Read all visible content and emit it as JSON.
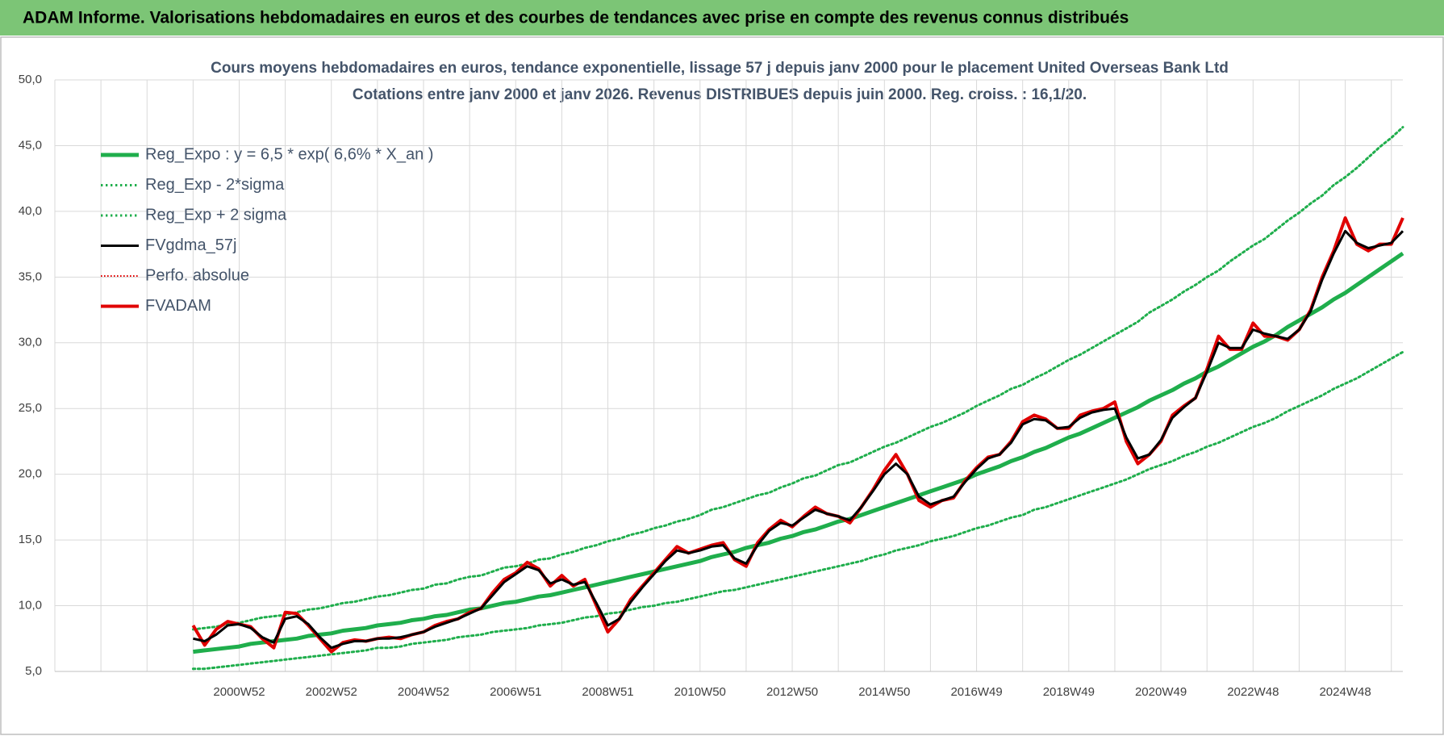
{
  "header": "ADAM Informe. Valorisations hebdomadaires en euros et des courbes de tendances avec prise en compte des revenus connus distribués",
  "chart_data": {
    "type": "line",
    "title": "Cours moyens hebdomadaires en euros, tendance exponentielle, lissage 57 j depuis janv 2000 pour le placement United Overseas Bank Ltd",
    "subtitle": "Cotations entre janv 2000 et janv 2026. Revenus DISTRIBUES depuis juin 2000. Reg. croiss. : 16,1/20.",
    "categories": [
      null,
      null,
      null,
      null,
      null,
      null,
      null,
      null,
      null,
      null,
      null,
      null,
      null,
      null,
      null,
      null,
      "2000W52",
      null,
      null,
      null,
      null,
      null,
      null,
      null,
      "2002W52",
      null,
      null,
      null,
      null,
      null,
      null,
      null,
      "2004W52",
      null,
      null,
      null,
      null,
      null,
      null,
      null,
      "2006W51",
      null,
      null,
      null,
      null,
      null,
      null,
      null,
      "2008W51",
      null,
      null,
      null,
      null,
      null,
      null,
      null,
      "2010W50",
      null,
      null,
      null,
      null,
      null,
      null,
      null,
      "2012W50",
      null,
      null,
      null,
      null,
      null,
      null,
      null,
      "2014W50",
      null,
      null,
      null,
      null,
      null,
      null,
      null,
      "2016W49",
      null,
      null,
      null,
      null,
      null,
      null,
      null,
      "2018W49",
      null,
      null,
      null,
      null,
      null,
      null,
      null,
      "2020W49",
      null,
      null,
      null,
      null,
      null,
      null,
      null,
      "2022W48",
      null,
      null,
      null,
      null,
      null,
      null,
      null,
      "2024W48",
      null,
      null,
      null,
      null,
      null
    ],
    "ylim": [
      5,
      50
    ],
    "yticks": [
      {
        "value": 5,
        "label": "5,0"
      },
      {
        "value": 10,
        "label": "10,0"
      },
      {
        "value": 15,
        "label": "15,0"
      },
      {
        "value": 20,
        "label": "20,0"
      },
      {
        "value": 25,
        "label": "25,0"
      },
      {
        "value": 30,
        "label": "30,0"
      },
      {
        "value": 35,
        "label": "35,0"
      },
      {
        "value": 40,
        "label": "40,0"
      },
      {
        "value": 45,
        "label": "45,0"
      },
      {
        "value": 50,
        "label": "50,0"
      }
    ],
    "grid": true,
    "legend": "top-left",
    "series": [
      {
        "name": "Reg_Expo : y = 6,5 * exp( 6,6% *  X_an )",
        "color": "#1fae4c",
        "style": "solid",
        "width": 5,
        "values": [
          null,
          null,
          null,
          null,
          null,
          null,
          null,
          null,
          null,
          null,
          null,
          null,
          6.5,
          6.6,
          6.7,
          6.8,
          6.9,
          7.1,
          7.2,
          7.3,
          7.4,
          7.5,
          7.7,
          7.8,
          7.9,
          8.1,
          8.2,
          8.3,
          8.5,
          8.6,
          8.7,
          8.9,
          9.0,
          9.2,
          9.3,
          9.5,
          9.7,
          9.8,
          10.0,
          10.2,
          10.3,
          10.5,
          10.7,
          10.8,
          11.0,
          11.2,
          11.4,
          11.6,
          11.8,
          12.0,
          12.2,
          12.4,
          12.6,
          12.8,
          13.0,
          13.2,
          13.4,
          13.7,
          13.9,
          14.1,
          14.4,
          14.6,
          14.8,
          15.1,
          15.3,
          15.6,
          15.8,
          16.1,
          16.4,
          16.6,
          16.9,
          17.2,
          17.5,
          17.8,
          18.1,
          18.4,
          18.7,
          19.0,
          19.3,
          19.6,
          20.0,
          20.3,
          20.6,
          21.0,
          21.3,
          21.7,
          22.0,
          22.4,
          22.8,
          23.1,
          23.5,
          23.9,
          24.3,
          24.7,
          25.1,
          25.6,
          26.0,
          26.4,
          26.9,
          27.3,
          27.8,
          28.2,
          28.7,
          29.2,
          29.7,
          30.1,
          30.6,
          31.2,
          31.7,
          32.2,
          32.7,
          33.3,
          33.8,
          34.4,
          35.0,
          35.6,
          36.2,
          36.8
        ]
      },
      {
        "name": "Reg_Exp - 2*sigma",
        "color": "#1fae4c",
        "style": "dotted",
        "width": 3,
        "values": [
          null,
          null,
          null,
          null,
          null,
          null,
          null,
          null,
          null,
          null,
          null,
          null,
          5.2,
          5.2,
          5.3,
          5.4,
          5.5,
          5.6,
          5.7,
          5.8,
          5.9,
          6.0,
          6.1,
          6.2,
          6.3,
          6.4,
          6.5,
          6.6,
          6.8,
          6.8,
          6.9,
          7.1,
          7.2,
          7.3,
          7.4,
          7.6,
          7.7,
          7.8,
          8.0,
          8.1,
          8.2,
          8.3,
          8.5,
          8.6,
          8.7,
          8.9,
          9.1,
          9.2,
          9.4,
          9.5,
          9.7,
          9.9,
          10.0,
          10.2,
          10.3,
          10.5,
          10.7,
          10.9,
          11.1,
          11.2,
          11.4,
          11.6,
          11.8,
          12.0,
          12.2,
          12.4,
          12.6,
          12.8,
          13.0,
          13.2,
          13.4,
          13.7,
          13.9,
          14.2,
          14.4,
          14.6,
          14.9,
          15.1,
          15.3,
          15.6,
          15.9,
          16.1,
          16.4,
          16.7,
          16.9,
          17.3,
          17.5,
          17.8,
          18.1,
          18.4,
          18.7,
          19.0,
          19.3,
          19.6,
          20.0,
          20.4,
          20.7,
          21.0,
          21.4,
          21.7,
          22.1,
          22.4,
          22.8,
          23.2,
          23.6,
          23.9,
          24.3,
          24.8,
          25.2,
          25.6,
          26.0,
          26.5,
          26.9,
          27.3,
          27.8,
          28.3,
          28.8,
          29.3
        ]
      },
      {
        "name": "Reg_Exp + 2 sigma",
        "color": "#1fae4c",
        "style": "dotted",
        "width": 3,
        "values": [
          null,
          null,
          null,
          null,
          null,
          null,
          null,
          null,
          null,
          null,
          null,
          null,
          8.2,
          8.3,
          8.4,
          8.6,
          8.7,
          8.9,
          9.1,
          9.2,
          9.3,
          9.5,
          9.7,
          9.8,
          10.0,
          10.2,
          10.3,
          10.5,
          10.7,
          10.8,
          11.0,
          11.2,
          11.3,
          11.6,
          11.7,
          12.0,
          12.2,
          12.3,
          12.6,
          12.9,
          13.0,
          13.2,
          13.5,
          13.6,
          13.9,
          14.1,
          14.4,
          14.6,
          14.9,
          15.1,
          15.4,
          15.6,
          15.9,
          16.1,
          16.4,
          16.6,
          16.9,
          17.3,
          17.5,
          17.8,
          18.1,
          18.4,
          18.6,
          19.0,
          19.3,
          19.7,
          19.9,
          20.3,
          20.7,
          20.9,
          21.3,
          21.7,
          22.1,
          22.4,
          22.8,
          23.2,
          23.6,
          23.9,
          24.3,
          24.7,
          25.2,
          25.6,
          26.0,
          26.5,
          26.8,
          27.3,
          27.7,
          28.2,
          28.7,
          29.1,
          29.6,
          30.1,
          30.6,
          31.1,
          31.6,
          32.3,
          32.8,
          33.3,
          33.9,
          34.4,
          35.0,
          35.5,
          36.2,
          36.8,
          37.4,
          37.9,
          38.6,
          39.3,
          39.9,
          40.6,
          41.2,
          42.0,
          42.6,
          43.3,
          44.1,
          44.9,
          45.6,
          46.4
        ]
      },
      {
        "name": "FVgdma_57j",
        "color": "#000000",
        "style": "solid",
        "width": 3,
        "values": [
          null,
          null,
          null,
          null,
          null,
          null,
          null,
          null,
          null,
          null,
          null,
          null,
          7.5,
          7.3,
          7.8,
          8.5,
          8.6,
          8.3,
          7.6,
          7.2,
          9.0,
          9.2,
          8.6,
          7.6,
          6.8,
          7.1,
          7.3,
          7.3,
          7.5,
          7.5,
          7.6,
          7.8,
          8.0,
          8.4,
          8.7,
          9.0,
          9.4,
          9.8,
          10.8,
          11.8,
          12.4,
          13.0,
          12.7,
          11.7,
          12.0,
          11.6,
          11.8,
          10.2,
          8.5,
          9.0,
          10.3,
          11.4,
          12.4,
          13.4,
          14.2,
          14.0,
          14.2,
          14.5,
          14.6,
          13.6,
          13.2,
          14.6,
          15.7,
          16.3,
          16.1,
          16.7,
          17.3,
          17.0,
          16.8,
          16.5,
          17.5,
          18.7,
          20.0,
          20.8,
          20.0,
          18.3,
          17.7,
          18.0,
          18.3,
          19.4,
          20.4,
          21.2,
          21.5,
          22.4,
          23.8,
          24.2,
          24.1,
          23.5,
          23.6,
          24.3,
          24.7,
          24.9,
          25.0,
          22.8,
          21.2,
          21.5,
          22.6,
          24.3,
          25.1,
          25.8,
          27.8,
          30.0,
          29.6,
          29.6,
          31.0,
          30.7,
          30.5,
          30.3,
          31.0,
          32.4,
          34.8,
          36.8,
          38.5,
          37.6,
          37.2,
          37.4,
          37.6,
          38.5
        ]
      },
      {
        "name": "Perfo. absolue",
        "color": "#e00000",
        "style": "dotted",
        "width": 2,
        "values": [
          null,
          null,
          null,
          null,
          null,
          null,
          null,
          null,
          null,
          null,
          null,
          null,
          null,
          null,
          null,
          null,
          null,
          null,
          null,
          null,
          null,
          null,
          null,
          null,
          null,
          null,
          null,
          null,
          null,
          null,
          null,
          null,
          null,
          null,
          null,
          null,
          null,
          null,
          null,
          null,
          null,
          null,
          null,
          null,
          null,
          null,
          null,
          null,
          null,
          null,
          null,
          null,
          null,
          null,
          null,
          null,
          null,
          null,
          null,
          null,
          null,
          null,
          null,
          null,
          null,
          null,
          null,
          null,
          null,
          null,
          null,
          null,
          null,
          null,
          null,
          null,
          null,
          null,
          null,
          null,
          null,
          null,
          null,
          null,
          null,
          null,
          null,
          null,
          null,
          null,
          null,
          null,
          null,
          null,
          null,
          null,
          null,
          null,
          null,
          null,
          null,
          null,
          null,
          null,
          null,
          null,
          null,
          null,
          null,
          null,
          null,
          null,
          null,
          null,
          null,
          null,
          null,
          null
        ]
      },
      {
        "name": "FVADAM",
        "color": "#e00000",
        "style": "solid",
        "width": 4,
        "values": [
          null,
          null,
          null,
          null,
          null,
          null,
          null,
          null,
          null,
          null,
          null,
          null,
          8.5,
          7.0,
          8.2,
          8.8,
          8.6,
          8.4,
          7.5,
          6.8,
          9.5,
          9.4,
          8.5,
          7.5,
          6.5,
          7.2,
          7.4,
          7.3,
          7.5,
          7.6,
          7.5,
          7.8,
          8.0,
          8.5,
          8.8,
          9.0,
          9.5,
          9.8,
          11.0,
          12.0,
          12.5,
          13.3,
          12.8,
          11.5,
          12.3,
          11.5,
          12.0,
          10.0,
          8.0,
          9.0,
          10.5,
          11.5,
          12.5,
          13.5,
          14.5,
          14.0,
          14.3,
          14.6,
          14.8,
          13.5,
          13.0,
          14.8,
          15.8,
          16.5,
          16.0,
          16.8,
          17.5,
          17.0,
          16.8,
          16.3,
          17.5,
          18.8,
          20.3,
          21.5,
          20.0,
          18.0,
          17.5,
          18.0,
          18.2,
          19.5,
          20.5,
          21.3,
          21.5,
          22.5,
          24.0,
          24.5,
          24.2,
          23.5,
          23.5,
          24.5,
          24.8,
          25.0,
          25.5,
          22.5,
          20.8,
          21.5,
          22.5,
          24.5,
          25.2,
          25.8,
          28.0,
          30.5,
          29.5,
          29.5,
          31.5,
          30.5,
          30.5,
          30.2,
          31.0,
          32.5,
          35.0,
          37.0,
          39.5,
          37.5,
          37.0,
          37.5,
          37.5,
          39.5
        ]
      }
    ]
  }
}
